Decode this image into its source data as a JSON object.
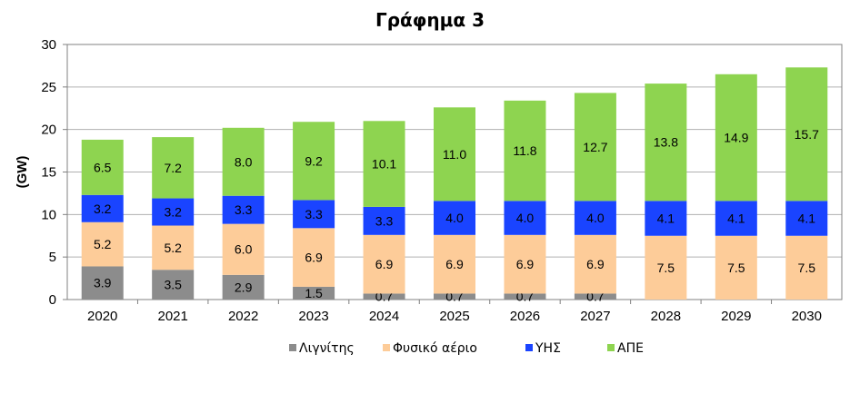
{
  "chart_data": {
    "type": "bar",
    "stacked": true,
    "title": "Γράφημα 3",
    "ylabel": "(GW)",
    "xlabel": "",
    "ylim": [
      0,
      30
    ],
    "yticks": [
      0,
      5,
      10,
      15,
      20,
      25,
      30
    ],
    "grid": true,
    "legend_position": "bottom",
    "categories": [
      "2020",
      "2021",
      "2022",
      "2023",
      "2024",
      "2025",
      "2026",
      "2027",
      "2028",
      "2029",
      "2030"
    ],
    "series": [
      {
        "name": "Λιγνίτης",
        "color": "#8c8c8c",
        "values": [
          3.9,
          3.5,
          2.9,
          1.5,
          0.7,
          0.7,
          0.7,
          0.7,
          0.0,
          0.0,
          0.0
        ]
      },
      {
        "name": "Φυσικό αέριο",
        "color": "#fdcc99",
        "values": [
          5.2,
          5.2,
          6.0,
          6.9,
          6.9,
          6.9,
          6.9,
          6.9,
          7.5,
          7.5,
          7.5
        ]
      },
      {
        "name": "ΥΗΣ",
        "color": "#1a44ff",
        "values": [
          3.2,
          3.2,
          3.3,
          3.3,
          3.3,
          4.0,
          4.0,
          4.0,
          4.1,
          4.1,
          4.1
        ]
      },
      {
        "name": "ΑΠΕ",
        "color": "#8ed450",
        "values": [
          6.5,
          7.2,
          8.0,
          9.2,
          10.1,
          11.0,
          11.8,
          12.7,
          13.8,
          14.9,
          15.7
        ]
      }
    ]
  }
}
